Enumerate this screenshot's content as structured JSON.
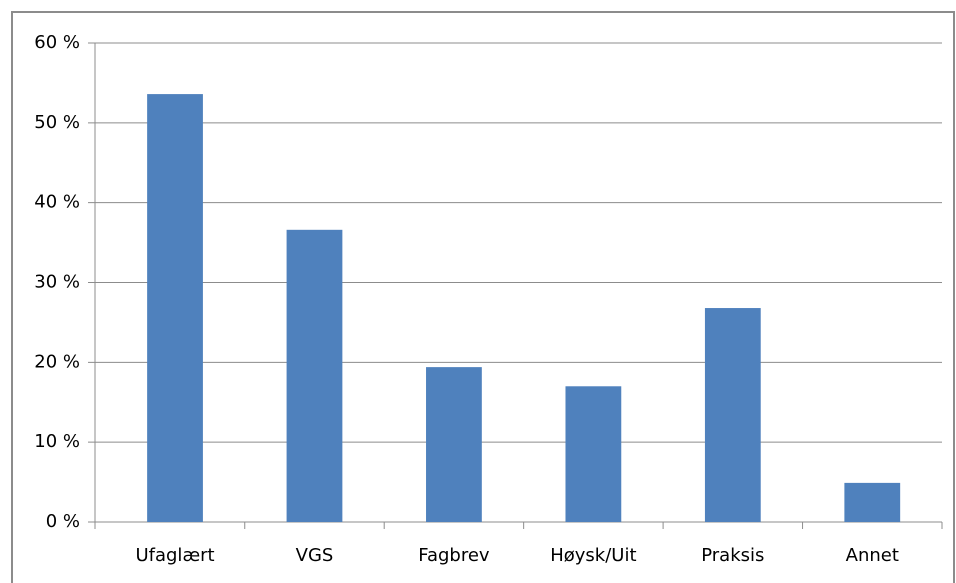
{
  "chart_data": {
    "type": "bar",
    "categories": [
      "Ufaglært",
      "VGS",
      "Fagbrev",
      "Høysk/Uit",
      "Praksis",
      "Annet"
    ],
    "values": [
      53.6,
      36.6,
      19.4,
      17.0,
      26.8,
      4.9
    ],
    "color": "#4f81bd",
    "ylim": [
      0,
      60
    ],
    "yticks": [
      {
        "value": 0,
        "label": "0 %"
      },
      {
        "value": 10,
        "label": "10 %"
      },
      {
        "value": 20,
        "label": "20 %"
      },
      {
        "value": 30,
        "label": "30 %"
      },
      {
        "value": 40,
        "label": "40 %"
      },
      {
        "value": 50,
        "label": "50 %"
      },
      {
        "value": 60,
        "label": "60 %"
      }
    ],
    "grid": true
  }
}
